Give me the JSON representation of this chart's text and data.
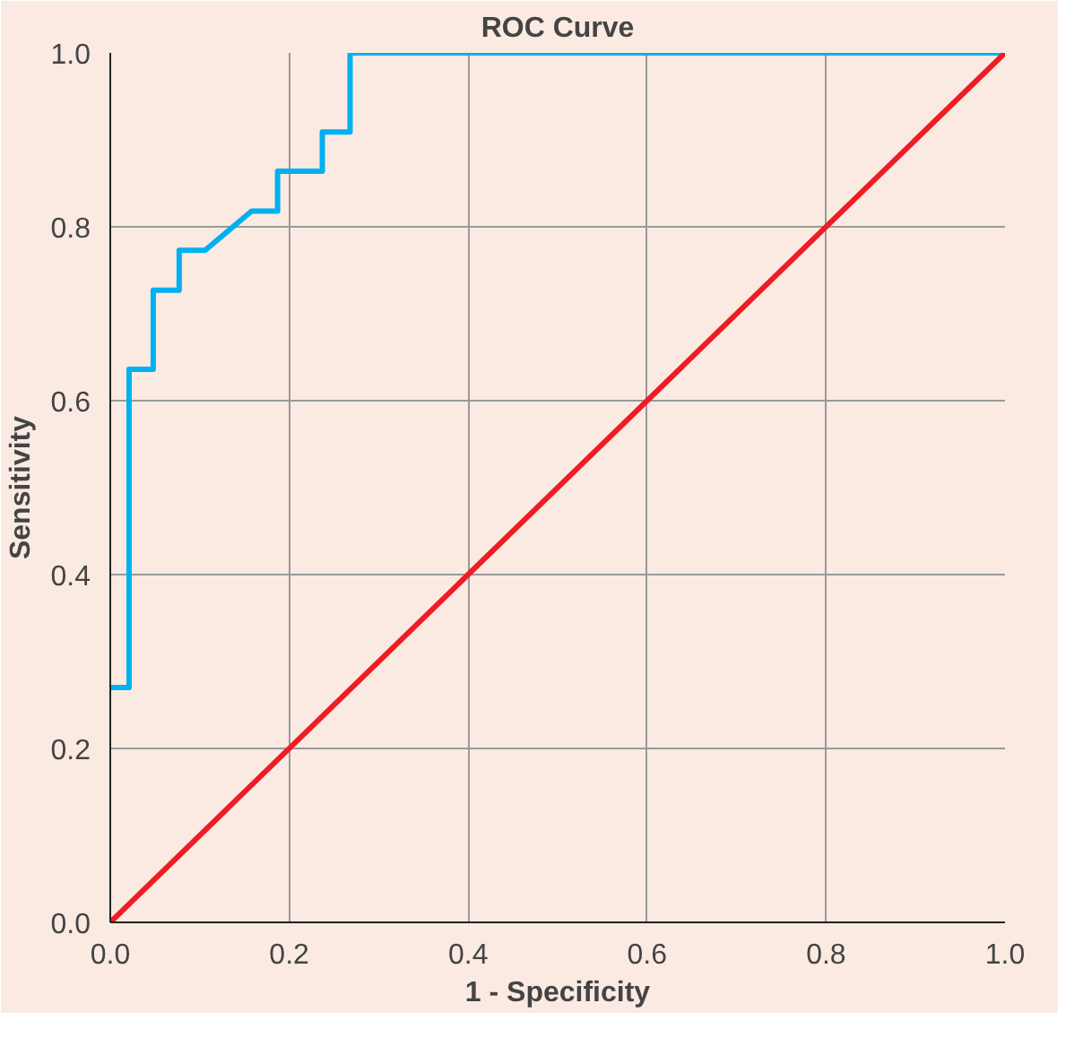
{
  "chart_data": {
    "type": "line",
    "title": "ROC Curve",
    "xlabel": "1 - Specificity",
    "ylabel": "Sensitivity",
    "xlim": [
      0,
      1
    ],
    "ylim": [
      0,
      1
    ],
    "xticks": [
      {
        "value": 0,
        "label": "0.0"
      },
      {
        "value": 0.2,
        "label": "0.2"
      },
      {
        "value": 0.4,
        "label": "0.4"
      },
      {
        "value": 0.6,
        "label": "0.6"
      },
      {
        "value": 0.8,
        "label": "0.8"
      },
      {
        "value": 1,
        "label": "1.0"
      }
    ],
    "yticks": [
      {
        "value": 0,
        "label": "0.0"
      },
      {
        "value": 0.2,
        "label": "0.2"
      },
      {
        "value": 0.4,
        "label": "0.4"
      },
      {
        "value": 0.6,
        "label": "0.6"
      },
      {
        "value": 0.8,
        "label": "0.8"
      },
      {
        "value": 1,
        "label": "1.0"
      }
    ],
    "grid": true,
    "line_style": "solid",
    "series": [
      {
        "color": "#00b0f0",
        "x": [
          0,
          0.021,
          0.021,
          0.048,
          0.048,
          0.077,
          0.077,
          0.106,
          0.158,
          0.187,
          0.187,
          0.237,
          0.237,
          0.268,
          0.268,
          1
        ],
        "values": [
          0.27,
          0.27,
          0.636,
          0.636,
          0.727,
          0.727,
          0.773,
          0.773,
          0.818,
          0.818,
          0.864,
          0.864,
          0.909,
          0.909,
          1,
          1
        ]
      },
      {
        "color": "#ee1c25",
        "x": [
          0,
          1
        ],
        "values": [
          0,
          1
        ]
      }
    ]
  }
}
